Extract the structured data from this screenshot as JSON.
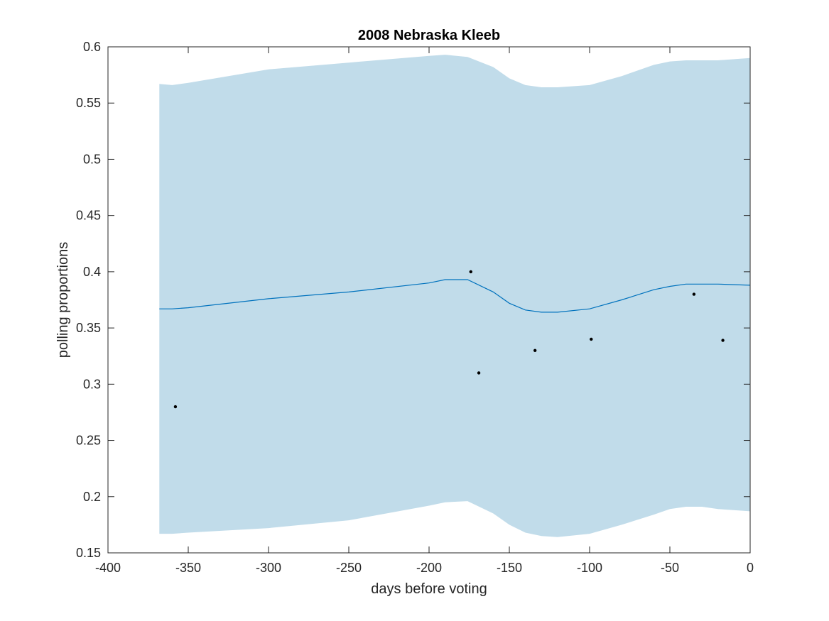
{
  "chart_data": {
    "type": "line",
    "title": "2008 Nebraska Kleeb",
    "xlabel": "days before voting",
    "ylabel": "polling proportions",
    "xlim": [
      -400,
      0
    ],
    "ylim": [
      0.15,
      0.6
    ],
    "xticks": [
      -400,
      -350,
      -300,
      -250,
      -200,
      -150,
      -100,
      -50,
      0
    ],
    "xtick_labels": [
      "-400",
      "-350",
      "-300",
      "-250",
      "-200",
      "-150",
      "-100",
      "-50",
      "0"
    ],
    "yticks": [
      0.15,
      0.2,
      0.25,
      0.3,
      0.35,
      0.4,
      0.45,
      0.5,
      0.55,
      0.6
    ],
    "ytick_labels": [
      "0.15",
      "0.2",
      "0.25",
      "0.3",
      "0.35",
      "0.4",
      "0.45",
      "0.5",
      "0.55",
      "0.6"
    ],
    "grid": false,
    "colors": {
      "band": "#c1dcea",
      "line": "#0072bd",
      "points": "#000000",
      "axes": "#262626"
    },
    "series": [
      {
        "kind": "band",
        "x": [
          -368,
          -360,
          -350,
          -300,
          -250,
          -200,
          -190,
          -176,
          -160,
          -150,
          -140,
          -130,
          -120,
          -100,
          -80,
          -60,
          -50,
          -40,
          -30,
          -20,
          0
        ],
        "lower": [
          0.167,
          0.167,
          0.168,
          0.172,
          0.179,
          0.192,
          0.195,
          0.196,
          0.185,
          0.175,
          0.168,
          0.165,
          0.164,
          0.167,
          0.175,
          0.184,
          0.189,
          0.191,
          0.191,
          0.189,
          0.187
        ],
        "upper": [
          0.567,
          0.566,
          0.568,
          0.58,
          0.586,
          0.592,
          0.593,
          0.591,
          0.582,
          0.572,
          0.566,
          0.564,
          0.564,
          0.566,
          0.574,
          0.584,
          0.587,
          0.588,
          0.588,
          0.588,
          0.59
        ]
      },
      {
        "kind": "line",
        "x": [
          -368,
          -360,
          -350,
          -300,
          -250,
          -200,
          -190,
          -176,
          -160,
          -150,
          -140,
          -130,
          -120,
          -100,
          -80,
          -60,
          -50,
          -40,
          -30,
          -20,
          0
        ],
        "y": [
          0.367,
          0.367,
          0.368,
          0.376,
          0.382,
          0.39,
          0.393,
          0.393,
          0.382,
          0.372,
          0.366,
          0.364,
          0.364,
          0.367,
          0.375,
          0.384,
          0.387,
          0.389,
          0.389,
          0.389,
          0.388
        ]
      },
      {
        "kind": "scatter",
        "x": [
          -358,
          -174,
          -169,
          -134,
          -99,
          -35,
          -17
        ],
        "y": [
          0.28,
          0.4,
          0.31,
          0.33,
          0.34,
          0.38,
          0.339
        ]
      }
    ]
  }
}
